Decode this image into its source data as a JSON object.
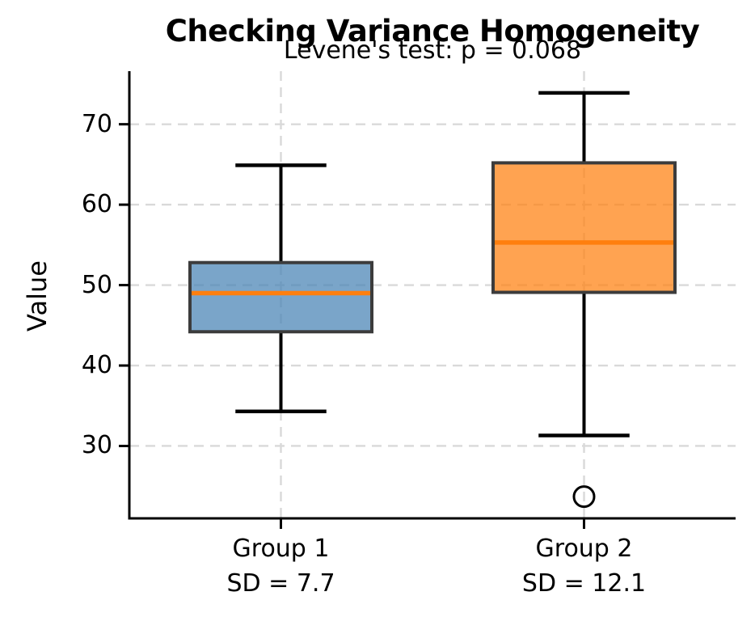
{
  "page": {
    "background": "#ffffff"
  },
  "chart_data": {
    "type": "box",
    "title": "Checking Variance Homogeneity",
    "subtitle": "Levene's test: p = 0.068",
    "ylabel": "Value",
    "xlabel": "",
    "yticks": [
      30,
      40,
      50,
      60,
      70
    ],
    "ylim": [
      21,
      76.6
    ],
    "xlim": [
      0.5,
      2.5
    ],
    "grid": {
      "on": true,
      "style": "dashed",
      "color": "#d9d9d9",
      "axis": "both"
    },
    "legend": "none",
    "box_width": 0.6,
    "cap_width": 0.3,
    "colors": {
      "whisker": "#000000",
      "box_edge": "#3c3c3c",
      "median": "#ff7f0e",
      "spine": "#000000",
      "outlier_edge": "#000000"
    },
    "groups": [
      {
        "x": 1,
        "label": "Group 1",
        "sublabel": "SD = 7.7",
        "fill_color": "#4682b4",
        "fill_opacity": 0.72,
        "stats": {
          "whisker_low": 34.3,
          "q1": 44.2,
          "median": 49.0,
          "q3": 52.8,
          "whisker_high": 64.9
        },
        "outliers": []
      },
      {
        "x": 2,
        "label": "Group 2",
        "sublabel": "SD = 12.1",
        "fill_color": "#ff7f0e",
        "fill_opacity": 0.72,
        "stats": {
          "whisker_low": 31.3,
          "q1": 49.1,
          "median": 55.3,
          "q3": 65.2,
          "whisker_high": 73.9
        },
        "outliers": [
          23.7
        ]
      }
    ]
  }
}
